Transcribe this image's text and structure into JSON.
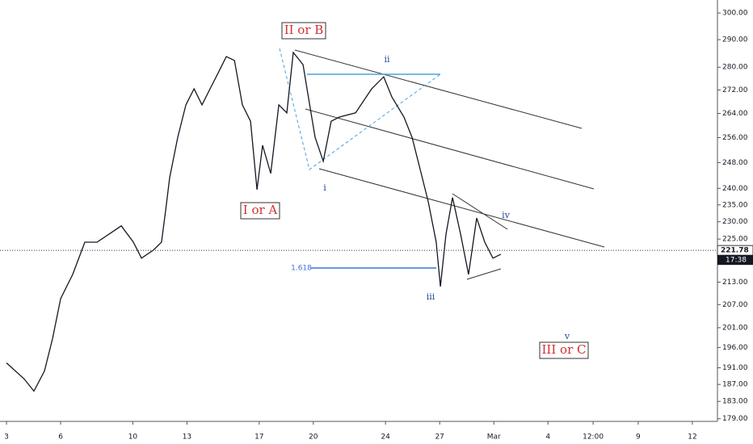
{
  "chart_data": {
    "type": "line",
    "color": "#131722",
    "log_scale": true,
    "x": [
      3.0,
      3.98,
      4.52,
      5.1,
      5.55,
      6.0,
      6.67,
      7.34,
      8.01,
      8.68,
      9.36,
      10.03,
      10.48,
      11.15,
      11.59,
      11.82,
      12.04,
      12.49,
      12.94,
      13.39,
      13.83,
      14.28,
      14.73,
      15.18,
      15.63,
      16.07,
      16.52,
      16.88,
      17.19,
      17.64,
      18.09,
      18.53,
      18.89,
      19.43,
      19.65,
      20.1,
      20.55,
      20.99,
      21.44,
      22.34,
      23.23,
      23.9,
      24.35,
      25.02,
      25.47,
      25.92,
      26.37,
      26.81,
      27.04,
      27.35,
      27.71,
      28.16,
      28.6,
      29.05,
      29.5,
      29.95,
      30.39
    ],
    "values": [
      192.2,
      188.3,
      185.4,
      190.2,
      198.2,
      208.6,
      215.1,
      224.1,
      224.1,
      226.4,
      228.8,
      224.1,
      219.6,
      221.9,
      224.1,
      233.5,
      243.3,
      256.1,
      266.9,
      272.4,
      266.9,
      272.4,
      278.0,
      283.8,
      282.4,
      266.9,
      261.4,
      239.6,
      253.5,
      244.6,
      266.9,
      264.2,
      285.3,
      280.9,
      272.4,
      256.1,
      248.4,
      261.4,
      262.8,
      264.2,
      272.4,
      276.6,
      269.6,
      262.8,
      256.1,
      245.8,
      235.9,
      224.1,
      211.8,
      226.4,
      237.2,
      226.4,
      215.1,
      231.1,
      224.1,
      219.6,
      220.7
    ],
    "xlim": [
      2.64,
      42.39
    ],
    "ylim": [
      178.4,
      305
    ],
    "xticks": [
      3,
      6,
      10,
      13,
      17,
      20,
      24,
      27,
      {
        "value": 30,
        "label": "Mar"
      },
      {
        "value": 33,
        "label": "4"
      },
      {
        "value": 35.5,
        "label": "12:00"
      },
      {
        "value": 38,
        "label": "9"
      },
      {
        "value": 41,
        "label": "12"
      }
    ],
    "yticks": [
      {
        "value": 300,
        "label": "300.00"
      },
      {
        "value": 290,
        "label": "290.00"
      },
      {
        "value": 280,
        "label": "280.00"
      },
      {
        "value": 272,
        "label": "272.00"
      },
      {
        "value": 264,
        "label": "264.00"
      },
      {
        "value": 256,
        "label": "256.00"
      },
      {
        "value": 248,
        "label": "248.00"
      },
      {
        "value": 240,
        "label": "240.00"
      },
      {
        "value": 235,
        "label": "235.00"
      },
      {
        "value": 230,
        "label": "230.00"
      },
      {
        "value": 225,
        "label": "225.00"
      },
      {
        "value": 213,
        "label": "213.00"
      },
      {
        "value": 207,
        "label": "207.00"
      },
      {
        "value": 201,
        "label": "201.00"
      },
      {
        "value": 196,
        "label": "196.00"
      },
      {
        "value": 191,
        "label": "191.00"
      },
      {
        "value": 187,
        "label": "187.00"
      },
      {
        "value": 183,
        "label": "183.00"
      },
      {
        "value": 179,
        "label": "179.00"
      }
    ],
    "last_price": 221.78,
    "countdown": "17:38",
    "annotations": {
      "wave_2": "II or B",
      "wave_1": "I or A",
      "wave_3": "III or C",
      "sub_i": "i",
      "sub_ii": "ii",
      "sub_iii": "iii",
      "sub_iv": "iv",
      "sub_v": "v",
      "fib": "1.618"
    }
  }
}
